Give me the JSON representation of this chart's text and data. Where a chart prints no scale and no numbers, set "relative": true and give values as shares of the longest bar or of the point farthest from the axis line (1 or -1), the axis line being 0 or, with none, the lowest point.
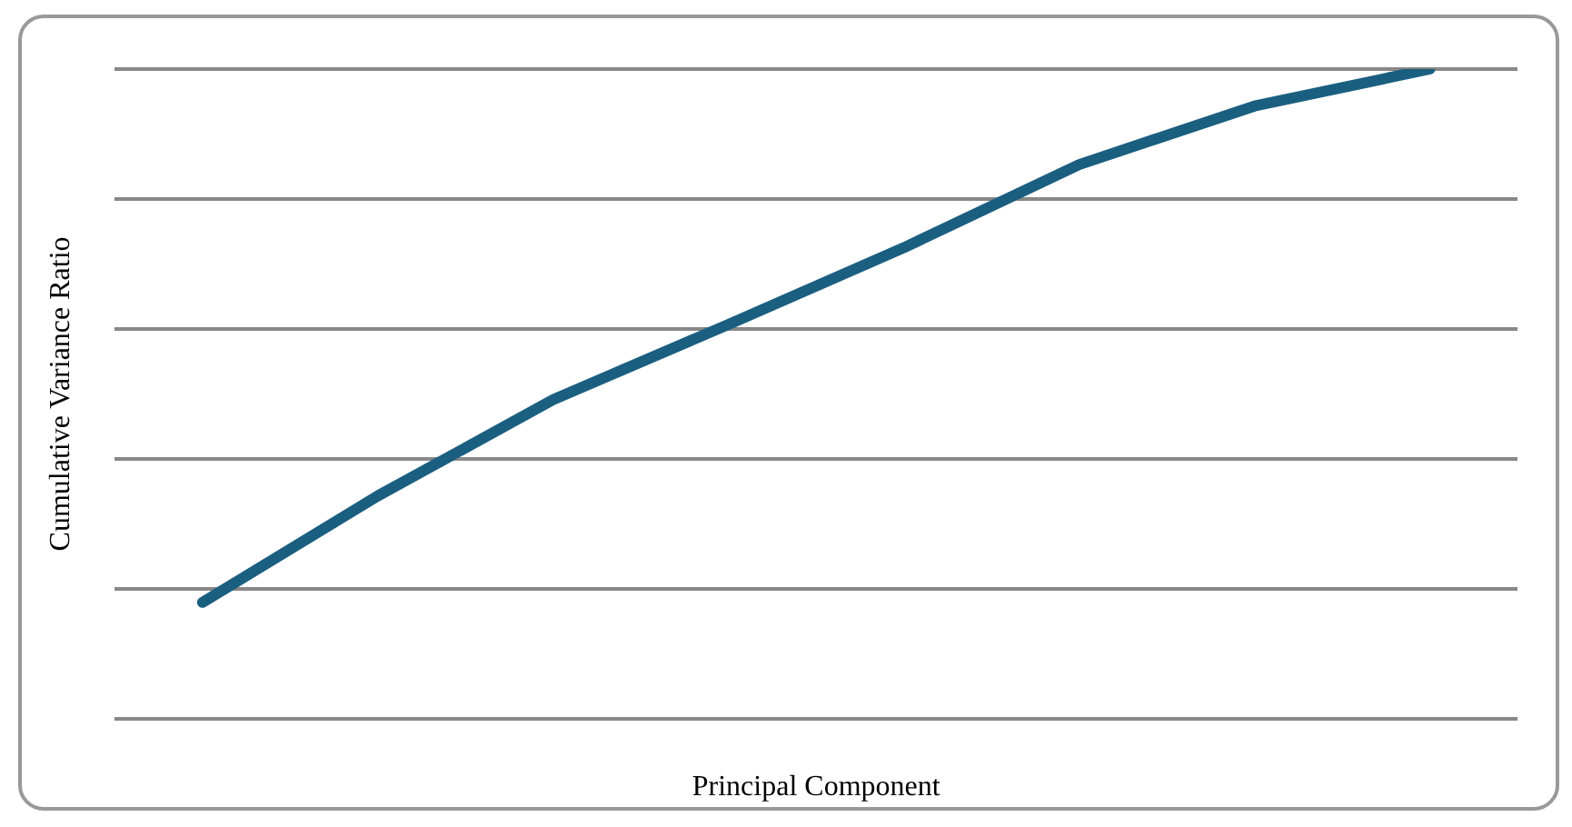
{
  "chart_data": {
    "type": "line",
    "relative": true,
    "xlabel": "Principal Component",
    "ylabel": "Cumulative Variance Ratio",
    "categories": [
      null,
      null,
      null,
      null,
      null,
      null,
      null,
      null
    ],
    "series": [
      {
        "color": "#1b5f80",
        "values": [
          0.179,
          0.343,
          0.491,
          0.607,
          0.725,
          0.853,
          0.943,
          1
        ]
      }
    ],
    "grid": "y",
    "legend": false,
    "marker": "none",
    "line_style": "solid"
  }
}
